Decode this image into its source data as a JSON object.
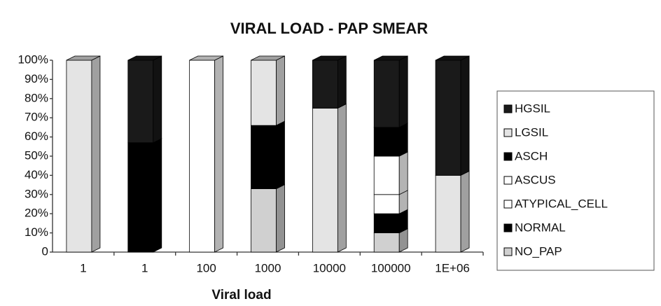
{
  "chart_data": {
    "type": "bar3d_stacked_percent",
    "title": "VIRAL LOAD - PAP SMEAR",
    "x_label": "Viral load",
    "categories": [
      "1",
      "1",
      "100",
      "1000",
      "10000",
      "100000",
      "1E+06"
    ],
    "series": [
      {
        "name": "HGSIL",
        "color": "#1a1a1a",
        "values": [
          0,
          43,
          0,
          0,
          25,
          35,
          60
        ]
      },
      {
        "name": "LGSIL",
        "color": "#e4e4e4",
        "values": [
          100,
          0,
          0,
          34,
          75,
          0,
          40
        ]
      },
      {
        "name": "ASCH",
        "color": "#000000",
        "values": [
          0,
          57,
          0,
          0,
          0,
          15,
          0
        ]
      },
      {
        "name": "ASCUS",
        "color": "#ffffff",
        "values": [
          0,
          0,
          100,
          0,
          0,
          20,
          0
        ]
      },
      {
        "name": "ATYPICAL_CELL",
        "color": "#ffffff",
        "values": [
          0,
          0,
          0,
          0,
          0,
          10,
          0
        ]
      },
      {
        "name": "NORMAL",
        "color": "#000000",
        "values": [
          0,
          0,
          0,
          33,
          0,
          10,
          0
        ]
      },
      {
        "name": "NO_PAP",
        "color": "#d0d0d0",
        "values": [
          0,
          0,
          0,
          33,
          0,
          10,
          0
        ]
      }
    ],
    "ylim": [
      0,
      100
    ],
    "yticks": [
      0,
      {
        "value": 10,
        "label": "10%"
      },
      {
        "value": 20,
        "label": "20%"
      },
      {
        "value": 30,
        "label": "30%"
      },
      {
        "value": 40,
        "label": "40%"
      },
      {
        "value": 50,
        "label": "50%"
      },
      {
        "value": 60,
        "label": "60%"
      },
      {
        "value": 70,
        "label": "70%"
      },
      {
        "value": 80,
        "label": "80%"
      },
      {
        "value": 90,
        "label": "90%"
      },
      {
        "value": 100,
        "label": "100%"
      }
    ],
    "legend": "right"
  }
}
